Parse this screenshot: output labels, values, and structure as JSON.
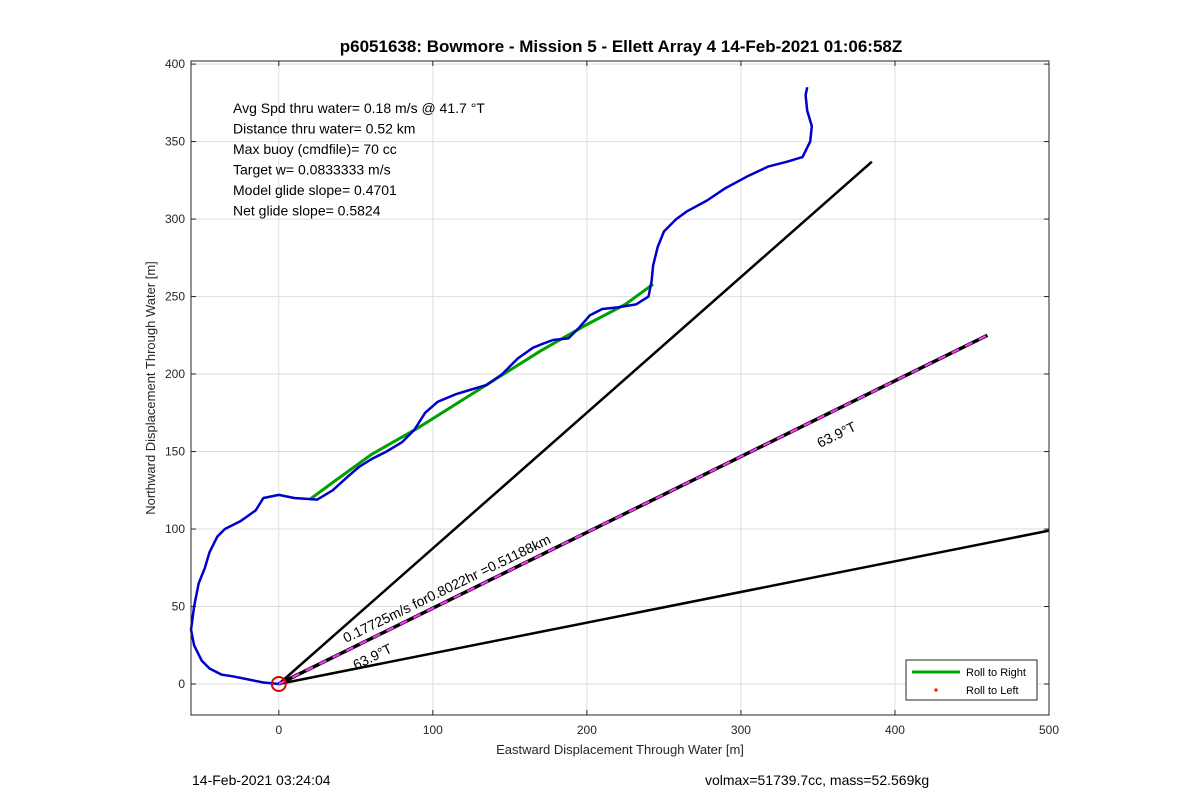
{
  "chart_data": {
    "type": "line",
    "title": "p6051638: Bowmore - Mission 5 - Ellett Array 4 14-Feb-2021 01:06:58Z",
    "xlabel": "Eastward Displacement Through Water [m]",
    "ylabel": "Northward Displacement Through Water [m]",
    "xlim": [
      -57,
      500
    ],
    "ylim": [
      -20,
      402
    ],
    "xticks": [
      0,
      100,
      200,
      300,
      400,
      500
    ],
    "yticks": [
      0,
      50,
      100,
      150,
      200,
      250,
      300,
      350,
      400
    ],
    "grid": true,
    "legend_position": "bottom-right",
    "legend": [
      {
        "label": "Roll to Right",
        "color": "#00a000",
        "style": "line"
      },
      {
        "label": "Roll to Left",
        "color": "#ff0000",
        "style": "dot"
      }
    ],
    "annotations": [
      "Avg Spd thru water=  0.18 m/s @  41.7 °T",
      "Distance thru water=  0.52 km",
      "Max buoy (cmdfile)= 70 cc",
      "Target w= 0.0833333 m/s",
      "Model glide slope= 0.4701",
      "Net glide slope= 0.5824"
    ],
    "line_labels": {
      "speed": "0.17725m/s for0.8022hr =0.51188km",
      "heading_upper": "63.9°T",
      "heading_lower": "63.9°T"
    },
    "series": [
      {
        "kind": "track",
        "color": "#0000cc",
        "x": [
          0,
          -10,
          -20,
          -30,
          -37,
          -45,
          -50,
          -55,
          -57,
          -55,
          -52,
          -48,
          -45,
          -40,
          -35,
          -25,
          -15,
          -10,
          0,
          10,
          25,
          35,
          45,
          52,
          60,
          70,
          80,
          88,
          95,
          103,
          115,
          125,
          135,
          145,
          155,
          165,
          170,
          178,
          188,
          195,
          202,
          210,
          220,
          232,
          240,
          242,
          243,
          246,
          250,
          258,
          265,
          278,
          290,
          305,
          318,
          330,
          340,
          345,
          346,
          343,
          342,
          343
        ],
        "y": [
          0,
          1,
          3,
          5,
          6,
          10,
          15,
          25,
          35,
          50,
          65,
          75,
          85,
          95,
          100,
          105,
          112,
          120,
          122,
          120,
          119,
          125,
          134,
          140,
          145,
          150,
          156,
          164,
          175,
          182,
          187,
          190,
          193,
          200,
          210,
          217,
          219,
          222,
          223,
          230,
          238,
          242,
          243,
          245,
          250,
          260,
          270,
          282,
          292,
          300,
          305,
          312,
          320,
          328,
          334,
          337,
          340,
          350,
          360,
          370,
          380,
          385
        ]
      },
      {
        "kind": "roll-right",
        "color": "#00a000",
        "x": [
          20,
          35,
          60,
          90,
          130,
          170,
          200,
          225,
          243
        ],
        "y": [
          119,
          130,
          148,
          165,
          190,
          215,
          232,
          245,
          258
        ]
      },
      {
        "kind": "net",
        "color": "#000000",
        "x": [
          0,
          460
        ],
        "y": [
          0,
          225
        ]
      },
      {
        "kind": "heading",
        "color": "#000000",
        "x": [
          0,
          385
        ],
        "y": [
          0,
          337
        ]
      },
      {
        "kind": "heading",
        "color": "#000000",
        "x": [
          0,
          500
        ],
        "y": [
          0,
          99
        ]
      }
    ],
    "start_marker": {
      "x": 0,
      "y": 0,
      "color": "#e00000"
    }
  },
  "footer": {
    "left": "14-Feb-2021 03:24:04",
    "right": "volmax=51739.7cc, mass=52.569kg"
  }
}
